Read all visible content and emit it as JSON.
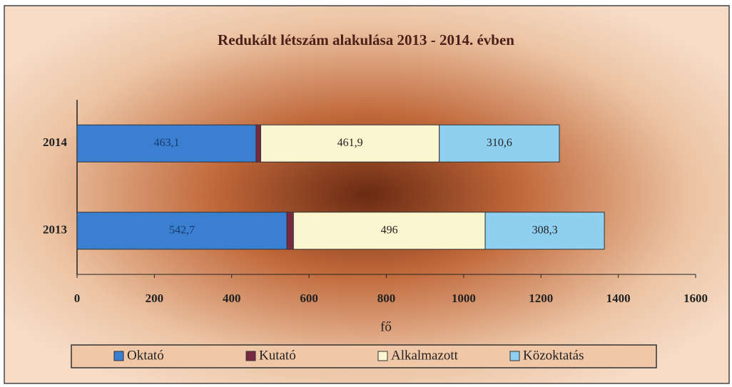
{
  "chart_data": {
    "type": "bar",
    "orientation": "horizontal",
    "stacked": true,
    "title": "Redukált létszám alakulása 2013 - 2014. évben",
    "x_label": "fő",
    "categories": [
      "2014",
      "2013"
    ],
    "series": [
      {
        "name": "Oktató",
        "color": "#3a7fd0",
        "values": [
          463.1,
          542.7
        ],
        "value_labels": [
          "463,1",
          "542,7"
        ]
      },
      {
        "name": "Kutató",
        "color": "#7a2a40",
        "values": [
          12,
          17
        ]
      },
      {
        "name": "Alkalmazott",
        "color": "#fbf6cf",
        "values": [
          461.9,
          496
        ],
        "value_labels": [
          "461,9",
          "496"
        ]
      },
      {
        "name": "Közoktatás",
        "color": "#8fd0f0",
        "values": [
          310.6,
          308.3
        ],
        "value_labels": [
          "310,6",
          "308,3"
        ]
      }
    ],
    "xlim": [
      0,
      1600
    ],
    "xticks": [
      0,
      200,
      400,
      600,
      800,
      1000,
      1200,
      1400,
      1600
    ],
    "grid": false,
    "legend": "bottom"
  }
}
